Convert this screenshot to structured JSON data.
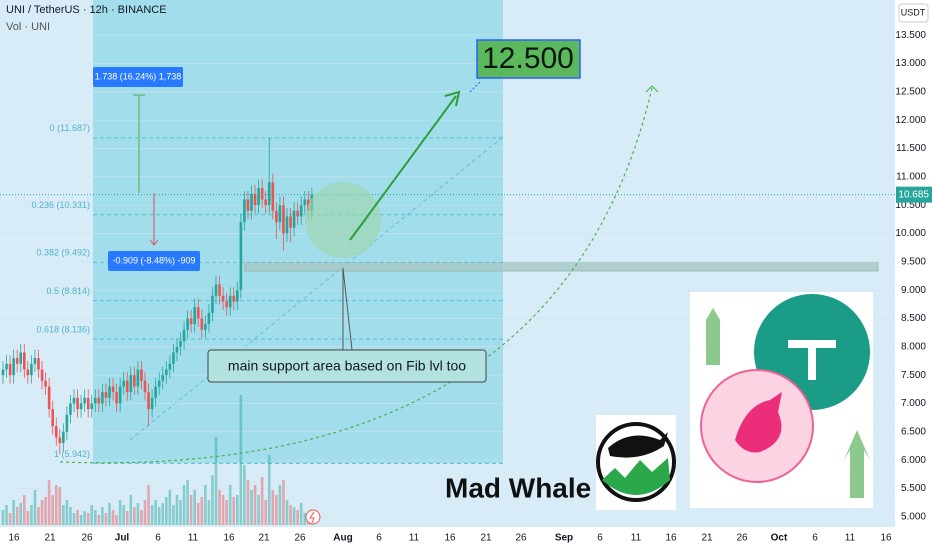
{
  "chart_data": {
    "type": "candlestick",
    "title": "UNI / TetherUS · 12h · BINANCE",
    "volume_label": "Vol · UNI",
    "currency": "USDT",
    "open": [
      7.5,
      7.6,
      7.7,
      7.5,
      7.8,
      7.7,
      7.9,
      7.6,
      7.5,
      7.7,
      7.8,
      7.6,
      7.4,
      7.3,
      6.9,
      6.6,
      6.4,
      6.3,
      6.5,
      6.8,
      7.0,
      7.1,
      6.9,
      7.0,
      7.1,
      6.9,
      7.0,
      7.1,
      7.0,
      7.2,
      7.1,
      7.3,
      7.2,
      7.0,
      7.3,
      7.4,
      7.2,
      7.5,
      7.3,
      7.6,
      7.4,
      7.2,
      6.9,
      7.1,
      7.3,
      7.4,
      7.5,
      7.6,
      7.7,
      7.9,
      8.0,
      8.1,
      8.3,
      8.5,
      8.4,
      8.7,
      8.5,
      8.3,
      8.4,
      8.6,
      8.9,
      9.1,
      8.9,
      8.8,
      8.7,
      8.9,
      8.8,
      9.0,
      10.2,
      10.6,
      10.4,
      10.7,
      10.5,
      10.8,
      10.6,
      10.5,
      10.9,
      10.4,
      10.2,
      10.5,
      10.0,
      10.3,
      10.1,
      10.4,
      10.3,
      10.5,
      10.6,
      10.4
    ],
    "high": [
      7.75,
      7.85,
      7.85,
      7.95,
      7.95,
      8.05,
      8.05,
      7.75,
      7.85,
      7.95,
      7.95,
      7.75,
      7.55,
      7.45,
      7.05,
      6.75,
      6.55,
      6.65,
      6.95,
      7.15,
      7.25,
      7.25,
      7.15,
      7.25,
      7.25,
      7.15,
      7.25,
      7.25,
      7.35,
      7.35,
      7.45,
      7.45,
      7.35,
      7.45,
      7.55,
      7.55,
      7.65,
      7.65,
      7.75,
      7.75,
      7.55,
      7.35,
      7.25,
      7.45,
      7.55,
      7.65,
      7.75,
      7.85,
      8.05,
      8.15,
      8.25,
      8.45,
      8.65,
      8.65,
      8.85,
      8.85,
      8.65,
      8.55,
      8.75,
      9.05,
      9.25,
      9.25,
      9.05,
      8.95,
      9.05,
      9.05,
      9.15,
      10.35,
      10.75,
      10.75,
      10.85,
      10.85,
      10.95,
      10.95,
      10.75,
      11.687,
      11.05,
      10.55,
      10.65,
      10.65,
      10.45,
      10.45,
      10.55,
      10.55,
      10.65,
      10.75,
      10.75,
      10.8
    ],
    "low": [
      7.35,
      7.45,
      7.35,
      7.35,
      7.55,
      7.55,
      7.45,
      7.35,
      7.35,
      7.55,
      7.45,
      7.25,
      7.15,
      6.75,
      6.45,
      6.25,
      6.1,
      6.15,
      6.35,
      6.65,
      6.85,
      6.75,
      6.75,
      6.85,
      6.75,
      6.75,
      6.85,
      6.85,
      6.85,
      6.95,
      6.95,
      7.05,
      6.85,
      6.85,
      7.15,
      7.05,
      7.05,
      7.15,
      7.15,
      7.25,
      7.05,
      6.6,
      6.75,
      6.95,
      7.15,
      7.25,
      7.35,
      7.45,
      7.55,
      7.75,
      7.85,
      7.95,
      8.15,
      8.25,
      8.25,
      8.35,
      8.15,
      8.15,
      8.25,
      8.45,
      8.75,
      8.75,
      8.65,
      8.55,
      8.55,
      8.65,
      8.65,
      8.85,
      10.05,
      10.25,
      10.25,
      10.35,
      10.35,
      10.45,
      10.35,
      10.35,
      10.25,
      9.9,
      10.05,
      9.7,
      9.85,
      9.85,
      9.95,
      10.15,
      10.15,
      10.35,
      10.25,
      10.25
    ],
    "close": [
      7.6,
      7.7,
      7.5,
      7.8,
      7.7,
      7.9,
      7.6,
      7.5,
      7.7,
      7.8,
      7.6,
      7.4,
      7.3,
      6.9,
      6.6,
      6.4,
      6.3,
      6.5,
      6.8,
      7.0,
      7.1,
      6.9,
      7.0,
      7.1,
      6.9,
      7.0,
      7.1,
      7.0,
      7.2,
      7.1,
      7.3,
      7.2,
      7.0,
      7.3,
      7.4,
      7.2,
      7.5,
      7.3,
      7.6,
      7.4,
      7.2,
      6.9,
      7.1,
      7.3,
      7.4,
      7.5,
      7.6,
      7.7,
      7.9,
      8.0,
      8.1,
      8.3,
      8.5,
      8.4,
      8.7,
      8.5,
      8.3,
      8.4,
      8.6,
      8.9,
      9.1,
      8.9,
      8.8,
      8.7,
      8.9,
      8.8,
      9.0,
      10.2,
      10.6,
      10.4,
      10.7,
      10.5,
      10.8,
      10.6,
      10.5,
      10.9,
      10.4,
      10.2,
      10.5,
      10.0,
      10.3,
      10.1,
      10.4,
      10.3,
      10.5,
      10.6,
      10.4,
      10.685
    ],
    "volume": [
      15,
      20,
      12,
      25,
      18,
      22,
      30,
      14,
      20,
      35,
      18,
      25,
      28,
      45,
      30,
      40,
      38,
      20,
      25,
      18,
      12,
      15,
      10,
      14,
      12,
      20,
      15,
      10,
      18,
      12,
      22,
      15,
      10,
      25,
      20,
      14,
      30,
      18,
      22,
      15,
      25,
      40,
      20,
      25,
      18,
      22,
      28,
      35,
      20,
      30,
      25,
      40,
      45,
      30,
      35,
      22,
      28,
      40,
      25,
      50,
      88,
      35,
      30,
      25,
      40,
      28,
      30,
      130,
      60,
      45,
      35,
      40,
      30,
      48,
      25,
      70,
      35,
      30,
      40,
      45,
      25,
      20,
      18,
      15,
      22,
      12,
      10,
      8
    ],
    "up_color": "#26a69a",
    "down_color": "#ef5350",
    "ylim": [
      4.82,
      14.12
    ],
    "yticks": [
      {
        "value": 13.5,
        "label": "13.500"
      },
      {
        "value": 13.0,
        "label": "13.000"
      },
      {
        "value": 12.5,
        "label": "12.500"
      },
      {
        "value": 12.0,
        "label": "12.000"
      },
      {
        "value": 11.5,
        "label": "11.500"
      },
      {
        "value": 11.0,
        "label": "11.000"
      },
      {
        "value": 10.5,
        "label": "10.500"
      },
      {
        "value": 10.0,
        "label": "10.000"
      },
      {
        "value": 9.5,
        "label": "9.500"
      },
      {
        "value": 9.0,
        "label": "9.000"
      },
      {
        "value": 8.5,
        "label": "8.500"
      },
      {
        "value": 8.0,
        "label": "8.000"
      },
      {
        "value": 7.5,
        "label": "7.500"
      },
      {
        "value": 7.0,
        "label": "7.000"
      },
      {
        "value": 6.5,
        "label": "6.500"
      },
      {
        "value": 6.0,
        "label": "6.000"
      },
      {
        "value": 5.5,
        "label": "5.500"
      },
      {
        "value": 5.0,
        "label": "5.000"
      }
    ],
    "x_labels": [
      "16",
      "21",
      "26",
      "Jul",
      "6",
      "11",
      "16",
      "21",
      "26",
      "Aug",
      "6",
      "11",
      "16",
      "21",
      "26",
      "Sep",
      "6",
      "11",
      "16",
      "21",
      "26",
      "Oct",
      "6",
      "11",
      "16"
    ],
    "last_price": {
      "value": 10.685,
      "label": "10.685"
    },
    "fib_levels": [
      {
        "label": "0 (11.687)",
        "value": 11.687
      },
      {
        "label": "0.236 (10.331)",
        "value": 10.331
      },
      {
        "label": "0.382 (9.492)",
        "value": 9.492
      },
      {
        "label": "0.5 (8.814)",
        "value": 8.814
      },
      {
        "label": "0.618 (8.136)",
        "value": 8.136
      },
      {
        "label": "1 (5.942)",
        "value": 5.942
      }
    ],
    "annotations": {
      "target": "12.500",
      "note": "main support area based on Fib lvl too",
      "measure_up": "1.738 (16.24%) 1,738",
      "measure_down": "-0.909 (-8.48%) -909",
      "brand": "Mad Whale"
    }
  }
}
